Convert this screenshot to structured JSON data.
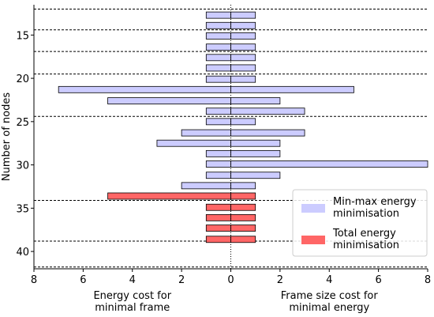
{
  "chart_data": {
    "type": "bar",
    "orientation": "horizontal-diverging",
    "ylabel": "Number of nodes",
    "xlabel_left": "Energy cost for minimal frame",
    "xlabel_left_lines": [
      "Energy cost for",
      "minimal frame"
    ],
    "xlabel_right": "Frame size cost for minimal energy",
    "xlabel_right_lines": [
      "Frame size cost for",
      "minimal energy"
    ],
    "x_ticks": [
      "8",
      "6",
      "4",
      "2",
      "0",
      "2",
      "4",
      "6",
      "8"
    ],
    "xlim": [
      -8,
      8
    ],
    "ylim": [
      11.5,
      42
    ],
    "y_ticks": [
      15,
      20,
      25,
      30,
      35,
      40
    ],
    "group_separators_y": [
      12,
      14.4,
      16.9,
      19.5,
      24.4,
      34.1,
      38.8,
      41.8
    ],
    "legend": {
      "position": "lower-right",
      "entries": [
        {
          "series": "minmax",
          "label_lines": [
            "Min-max energy",
            "minimisation"
          ]
        },
        {
          "series": "total",
          "label_lines": [
            "Total energy",
            "minimisation"
          ]
        }
      ]
    },
    "series": [
      {
        "key": "minmax",
        "name": "Min-max energy minimisation",
        "color": "#ccccff",
        "edge": "#000000"
      },
      {
        "key": "total",
        "name": "Total energy minimisation",
        "color": "#ff6666",
        "edge": "#000000"
      }
    ],
    "bars": [
      {
        "y": 12.7,
        "energy_cost": 1,
        "frame_cost": 1,
        "series": "minmax"
      },
      {
        "y": 13.9,
        "energy_cost": 1,
        "frame_cost": 1,
        "series": "minmax"
      },
      {
        "y": 15.1,
        "energy_cost": 1,
        "frame_cost": 1,
        "series": "minmax"
      },
      {
        "y": 16.4,
        "energy_cost": 1,
        "frame_cost": 1,
        "series": "minmax"
      },
      {
        "y": 17.6,
        "energy_cost": 1,
        "frame_cost": 1,
        "series": "minmax"
      },
      {
        "y": 18.8,
        "energy_cost": 1,
        "frame_cost": 1,
        "series": "minmax"
      },
      {
        "y": 20.1,
        "energy_cost": 1,
        "frame_cost": 1,
        "series": "minmax"
      },
      {
        "y": 21.3,
        "energy_cost": 7,
        "frame_cost": 5,
        "series": "minmax"
      },
      {
        "y": 22.6,
        "energy_cost": 5,
        "frame_cost": 2,
        "series": "minmax"
      },
      {
        "y": 23.8,
        "energy_cost": 1,
        "frame_cost": 3,
        "series": "minmax"
      },
      {
        "y": 25.0,
        "energy_cost": 1,
        "frame_cost": 1,
        "series": "minmax"
      },
      {
        "y": 26.3,
        "energy_cost": 2,
        "frame_cost": 3,
        "series": "minmax"
      },
      {
        "y": 27.5,
        "energy_cost": 3,
        "frame_cost": 2,
        "series": "minmax"
      },
      {
        "y": 28.7,
        "energy_cost": 1,
        "frame_cost": 2,
        "series": "minmax"
      },
      {
        "y": 29.9,
        "energy_cost": 1,
        "frame_cost": 8,
        "series": "minmax"
      },
      {
        "y": 31.2,
        "energy_cost": 1,
        "frame_cost": 2,
        "series": "minmax"
      },
      {
        "y": 32.4,
        "energy_cost": 2,
        "frame_cost": 1,
        "series": "minmax"
      },
      {
        "y": 33.6,
        "energy_cost": 5,
        "frame_cost": 1,
        "series": "total"
      },
      {
        "y": 34.9,
        "energy_cost": 1,
        "frame_cost": 1,
        "series": "total"
      },
      {
        "y": 36.1,
        "energy_cost": 1,
        "frame_cost": 1,
        "series": "total"
      },
      {
        "y": 37.3,
        "energy_cost": 1,
        "frame_cost": 1,
        "series": "total"
      },
      {
        "y": 38.6,
        "energy_cost": 1,
        "frame_cost": 1,
        "series": "total"
      }
    ]
  }
}
